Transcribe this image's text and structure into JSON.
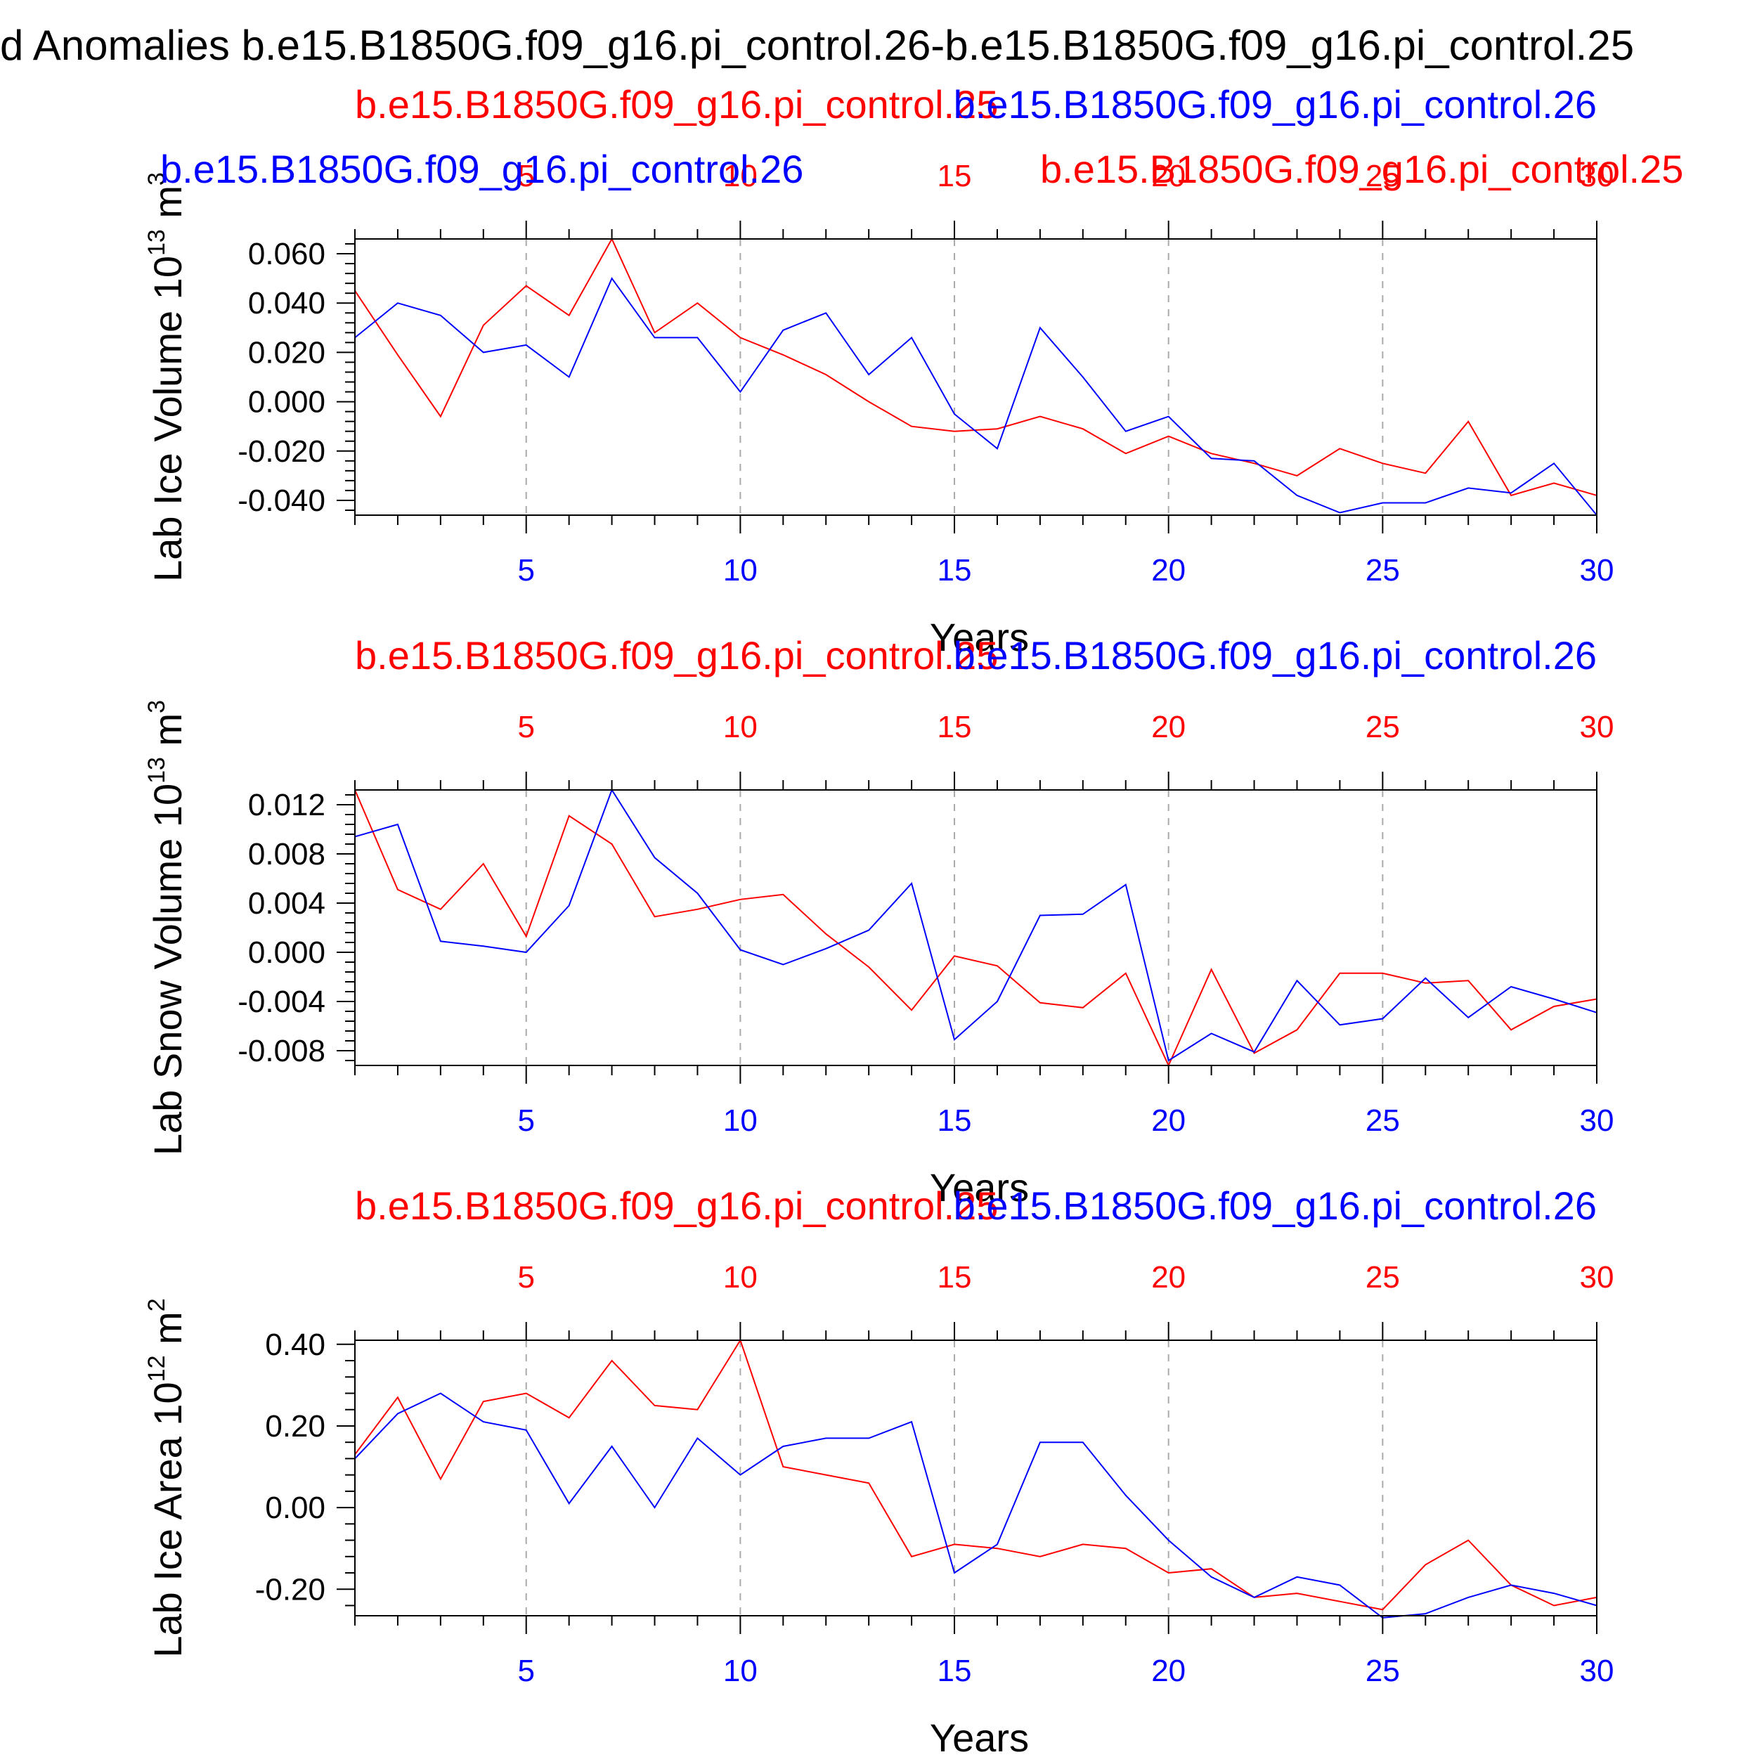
{
  "figure": {
    "title": "d Anomalies b.e15.B1850G.f09_g16.pi_control.26-b.e15.B1850G.f09_g16.pi_control.25"
  },
  "colors": {
    "run_a": "#ff0000",
    "run_b": "#0000ff",
    "axis": "#000000",
    "grid": "#aaaaaa"
  },
  "chart_data": [
    {
      "type": "line",
      "ylabel": "Lab Ice Volume 10",
      "ylabel_exp": "13",
      "ylabel_unit": "m",
      "ylabel_unit_exp": "3",
      "xlabel": "Years",
      "xlim": [
        1,
        30
      ],
      "ylim": [
        -0.046,
        0.066
      ],
      "yticks": [
        -0.04,
        -0.02,
        0.0,
        0.02,
        0.04,
        0.06
      ],
      "ytick_labels": [
        "-0.040",
        "-0.020",
        "0.000",
        "0.020",
        "0.040",
        "0.060"
      ],
      "xticks": [
        5,
        10,
        15,
        20,
        25,
        30
      ],
      "xtick_labels": [
        "5",
        "10",
        "15",
        "20",
        "25",
        "30"
      ],
      "grid": "vertical dashed at major x ticks",
      "legend_top": [
        {
          "text": "b.e15.B1850G.f09_g16.pi_control.25",
          "color": "#ff0000"
        },
        {
          "text": "b.e15.B1850G.f09_g16.pi_control.26",
          "color": "#0000ff"
        }
      ],
      "legend_extra": [
        {
          "text": "b.e15.B1850G.f09_g16.pi_control.26",
          "color": "#0000ff"
        },
        {
          "text": "b.e15.B1850G.f09_g16.pi_control.25",
          "color": "#ff0000"
        }
      ],
      "series": [
        {
          "name": "b.e15.B1850G.f09_g16.pi_control.25",
          "color": "#ff0000",
          "x": [
            1,
            2,
            3,
            4,
            5,
            6,
            7,
            8,
            9,
            10,
            11,
            12,
            13,
            14,
            15,
            16,
            17,
            18,
            19,
            20,
            21,
            22,
            23,
            24,
            25,
            26,
            27,
            28,
            29,
            30
          ],
          "values": [
            0.045,
            0.019,
            -0.006,
            0.031,
            0.047,
            0.035,
            0.066,
            0.028,
            0.04,
            0.026,
            0.019,
            0.011,
            0.0,
            -0.01,
            -0.012,
            -0.011,
            -0.006,
            -0.011,
            -0.021,
            -0.014,
            -0.021,
            -0.025,
            -0.03,
            -0.019,
            -0.025,
            -0.029,
            -0.008,
            -0.038,
            -0.033,
            -0.038
          ]
        },
        {
          "name": "b.e15.B1850G.f09_g16.pi_control.26",
          "color": "#0000ff",
          "x": [
            1,
            2,
            3,
            4,
            5,
            6,
            7,
            8,
            9,
            10,
            11,
            12,
            13,
            14,
            15,
            16,
            17,
            18,
            19,
            20,
            21,
            22,
            23,
            24,
            25,
            26,
            27,
            28,
            29,
            30
          ],
          "values": [
            0.026,
            0.04,
            0.035,
            0.02,
            0.023,
            0.01,
            0.05,
            0.026,
            0.026,
            0.004,
            0.029,
            0.036,
            0.011,
            0.026,
            -0.005,
            -0.019,
            0.03,
            0.01,
            -0.012,
            -0.006,
            -0.023,
            -0.024,
            -0.038,
            -0.045,
            -0.041,
            -0.041,
            -0.035,
            -0.037,
            -0.025,
            -0.046
          ]
        }
      ]
    },
    {
      "type": "line",
      "ylabel": "Lab Snow Volume 10",
      "ylabel_exp": "13",
      "ylabel_unit": "m",
      "ylabel_unit_exp": "3",
      "xlabel": "Years",
      "xlim": [
        1,
        30
      ],
      "ylim": [
        -0.0092,
        0.0132
      ],
      "yticks": [
        -0.008,
        -0.004,
        0.0,
        0.004,
        0.008,
        0.012
      ],
      "ytick_labels": [
        "-0.008",
        "-0.004",
        "0.000",
        "0.004",
        "0.008",
        "0.012"
      ],
      "xticks": [
        5,
        10,
        15,
        20,
        25,
        30
      ],
      "xtick_labels": [
        "5",
        "10",
        "15",
        "20",
        "25",
        "30"
      ],
      "grid": "vertical dashed at major x ticks",
      "legend_top": [
        {
          "text": "b.e15.B1850G.f09_g16.pi_control.25",
          "color": "#ff0000"
        },
        {
          "text": "b.e15.B1850G.f09_g16.pi_control.26",
          "color": "#0000ff"
        }
      ],
      "legend_extra": [],
      "series": [
        {
          "name": "b.e15.B1850G.f09_g16.pi_control.25",
          "color": "#ff0000",
          "x": [
            1,
            2,
            3,
            4,
            5,
            6,
            7,
            8,
            9,
            10,
            11,
            12,
            13,
            14,
            15,
            16,
            17,
            18,
            19,
            20,
            21,
            22,
            23,
            24,
            25,
            26,
            27,
            28,
            29,
            30
          ],
          "values": [
            0.0132,
            0.0051,
            0.0035,
            0.0072,
            0.0013,
            0.0111,
            0.0088,
            0.0029,
            0.0035,
            0.0043,
            0.0047,
            0.0015,
            -0.0012,
            -0.0047,
            -0.0003,
            -0.0011,
            -0.0041,
            -0.0045,
            -0.0017,
            -0.0092,
            -0.0014,
            -0.0082,
            -0.0063,
            -0.0017,
            -0.0017,
            -0.0025,
            -0.0023,
            -0.0063,
            -0.0044,
            -0.0038
          ]
        },
        {
          "name": "b.e15.B1850G.f09_g16.pi_control.26",
          "color": "#0000ff",
          "x": [
            1,
            2,
            3,
            4,
            5,
            6,
            7,
            8,
            9,
            10,
            11,
            12,
            13,
            14,
            15,
            16,
            17,
            18,
            19,
            20,
            21,
            22,
            23,
            24,
            25,
            26,
            27,
            28,
            29,
            30
          ],
          "values": [
            0.0094,
            0.0104,
            0.0009,
            0.0005,
            0.0,
            0.0038,
            0.0132,
            0.0077,
            0.0048,
            0.0002,
            -0.001,
            0.0003,
            0.0018,
            0.0056,
            -0.0071,
            -0.004,
            0.003,
            0.0031,
            0.0055,
            -0.0088,
            -0.0066,
            -0.0081,
            -0.0023,
            -0.0059,
            -0.0054,
            -0.0021,
            -0.0053,
            -0.0028,
            -0.0038,
            -0.0049
          ]
        }
      ]
    },
    {
      "type": "line",
      "ylabel": "Lab Ice Area 10",
      "ylabel_exp": "12",
      "ylabel_unit": "m",
      "ylabel_unit_exp": "2",
      "xlabel": "Years",
      "xlim": [
        1,
        30
      ],
      "ylim": [
        -0.265,
        0.41
      ],
      "yticks": [
        -0.2,
        0.0,
        0.2,
        0.4
      ],
      "ytick_labels": [
        "-0.20",
        "0.00",
        "0.20",
        "0.40"
      ],
      "xticks": [
        5,
        10,
        15,
        20,
        25,
        30
      ],
      "xtick_labels": [
        "5",
        "10",
        "15",
        "20",
        "25",
        "30"
      ],
      "grid": "vertical dashed at major x ticks",
      "legend_top": [
        {
          "text": "b.e15.B1850G.f09_g16.pi_control.25",
          "color": "#ff0000"
        },
        {
          "text": "b.e15.B1850G.f09_g16.pi_control.26",
          "color": "#0000ff"
        }
      ],
      "legend_extra": [],
      "series": [
        {
          "name": "b.e15.B1850G.f09_g16.pi_control.25",
          "color": "#ff0000",
          "x": [
            1,
            2,
            3,
            4,
            5,
            6,
            7,
            8,
            9,
            10,
            11,
            12,
            13,
            14,
            15,
            16,
            17,
            18,
            19,
            20,
            21,
            22,
            23,
            24,
            25,
            26,
            27,
            28,
            29,
            30
          ],
          "values": [
            0.13,
            0.27,
            0.07,
            0.26,
            0.28,
            0.22,
            0.36,
            0.25,
            0.24,
            0.41,
            0.1,
            0.08,
            0.06,
            -0.12,
            -0.09,
            -0.1,
            -0.12,
            -0.09,
            -0.1,
            -0.16,
            -0.15,
            -0.22,
            -0.21,
            -0.23,
            -0.25,
            -0.14,
            -0.08,
            -0.19,
            -0.24,
            -0.22
          ]
        },
        {
          "name": "b.e15.B1850G.f09_g16.pi_control.26",
          "color": "#0000ff",
          "x": [
            1,
            2,
            3,
            4,
            5,
            6,
            7,
            8,
            9,
            10,
            11,
            12,
            13,
            14,
            15,
            16,
            17,
            18,
            19,
            20,
            21,
            22,
            23,
            24,
            25,
            26,
            27,
            28,
            29,
            30
          ],
          "values": [
            0.12,
            0.23,
            0.28,
            0.21,
            0.19,
            0.01,
            0.15,
            0.0,
            0.17,
            0.08,
            0.15,
            0.17,
            0.17,
            0.21,
            -0.16,
            -0.09,
            0.16,
            0.16,
            0.03,
            -0.08,
            -0.17,
            -0.22,
            -0.17,
            -0.19,
            -0.27,
            -0.26,
            -0.22,
            -0.19,
            -0.21,
            -0.24
          ]
        }
      ]
    }
  ]
}
